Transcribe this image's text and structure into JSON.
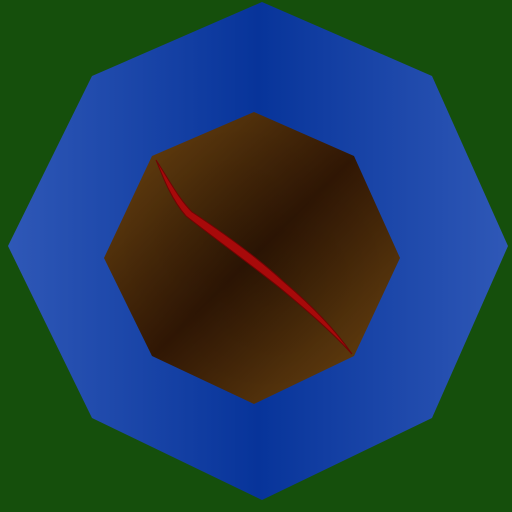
{
  "colors": {
    "grass": "#154f0c",
    "water_light": "#2f58b7",
    "water_dark": "#07349a",
    "dirt_light": "#6f4510",
    "dirt_mid": "#52310b",
    "dirt_dark": "#311704",
    "fissure": "#a70a0a",
    "fissure_dark": "#700404"
  },
  "scene": {
    "outer_shape": "octagon",
    "inner_shape": "octagon",
    "feature": "crack"
  }
}
